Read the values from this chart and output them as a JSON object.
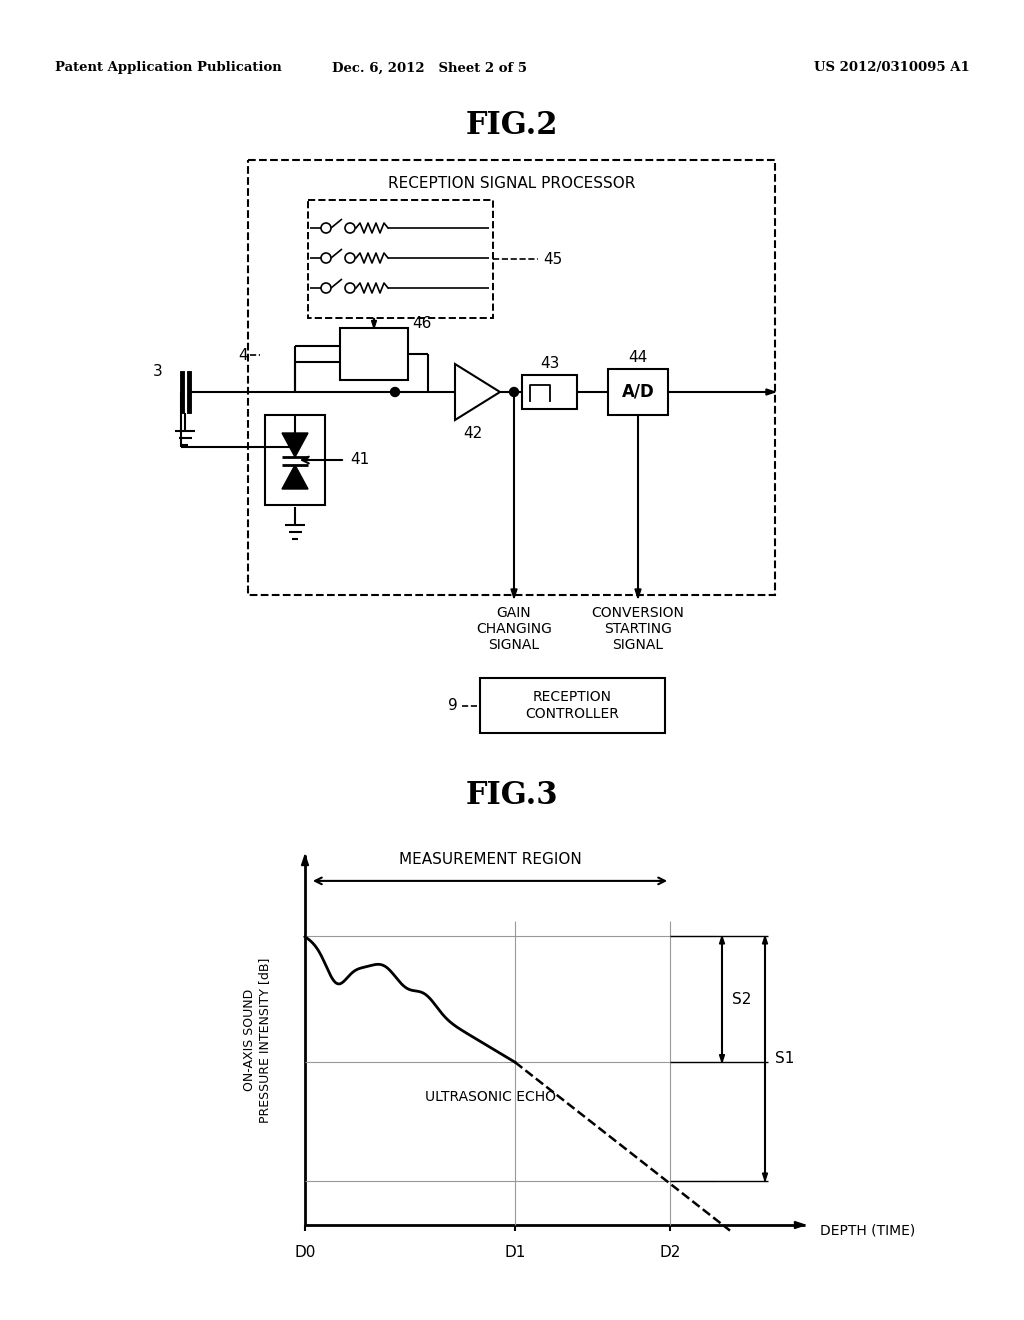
{
  "header_left": "Patent Application Publication",
  "header_mid": "Dec. 6, 2012   Sheet 2 of 5",
  "header_right": "US 2012/0310095 A1",
  "fig2_title": "FIG.2",
  "fig3_title": "FIG.3",
  "fig2_label_rsp": "RECEPTION SIGNAL PROCESSOR",
  "fig2_label_45": "45",
  "fig2_label_46": "46",
  "fig2_label_43": "43",
  "fig2_label_44": "44",
  "fig2_label_42": "42",
  "fig2_label_41": "41",
  "fig2_label_4": "4",
  "fig2_label_3": "3",
  "fig2_label_9": "9",
  "fig2_label_gain": "GAIN\nCHANGING\nSIGNAL",
  "fig2_label_conv": "CONVERSION\nSTARTING\nSIGNAL",
  "fig2_label_rc": "RECEPTION\nCONTROLLER",
  "fig3_ylabel": "ON-AXIS SOUND\nPRESSURE INTENSITY [dB]",
  "fig3_xlabel": "DEPTH (TIME)",
  "fig3_label_mr": "MEASUREMENT REGION",
  "fig3_label_echo": "ULTRASONIC ECHO",
  "fig3_label_S1": "S1",
  "fig3_label_S2": "S2",
  "fig3_tick_D0": "D0",
  "fig3_tick_D1": "D1",
  "fig3_tick_D2": "D2",
  "bg_color": "#ffffff",
  "line_color": "#000000"
}
